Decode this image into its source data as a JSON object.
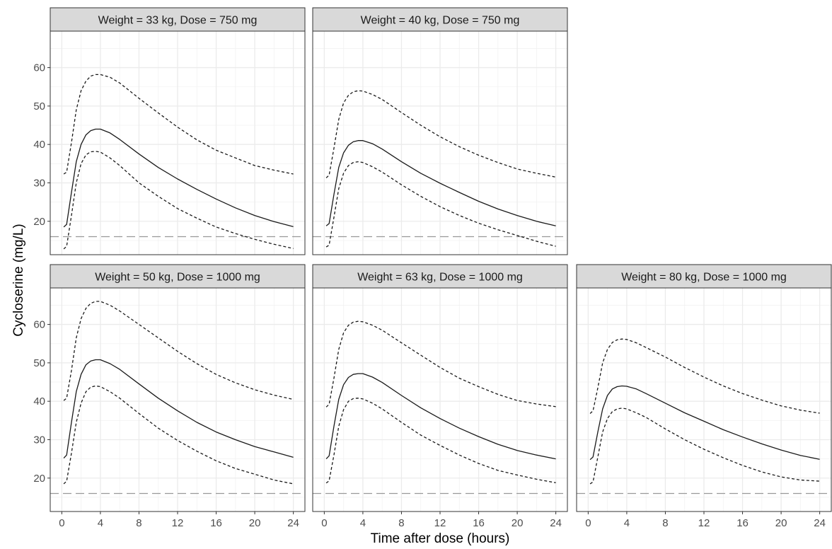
{
  "chart_data": {
    "type": "line",
    "xlabel": "Time after dose (hours)",
    "ylabel": "Cycloserine (mg/L)",
    "xlim": [
      -1.2,
      25.2
    ],
    "ylim": [
      11.3,
      69.5
    ],
    "xticks": [
      0,
      4,
      8,
      12,
      16,
      20,
      24
    ],
    "yticks": [
      20,
      30,
      40,
      50,
      60
    ],
    "grid": true,
    "reference_line": {
      "y": 16,
      "style": "dashed"
    },
    "panels": [
      {
        "title": "Weight = 33 kg, Dose = 750 mg",
        "x": [
          0.2,
          0.5,
          1,
          1.5,
          2,
          2.5,
          3,
          3.5,
          4,
          5,
          6,
          8,
          10,
          12,
          14,
          16,
          18,
          20,
          22,
          24
        ],
        "series": [
          {
            "name": "median",
            "style": "solid",
            "values": [
              18.5,
              19.2,
              27.5,
              35.5,
              40.0,
              42.5,
              43.6,
              44.0,
              44.0,
              43.0,
              41.3,
              37.5,
              34.0,
              31.0,
              28.3,
              25.8,
              23.5,
              21.5,
              19.9,
              18.6
            ]
          },
          {
            "name": "upper",
            "style": "dotted",
            "values": [
              32.3,
              32.8,
              40.5,
              49.0,
              54.0,
              56.5,
              57.8,
              58.2,
              58.2,
              57.5,
              56.0,
              52.0,
              48.2,
              44.5,
              41.2,
              38.5,
              36.5,
              34.5,
              33.3,
              32.3
            ]
          },
          {
            "name": "lower",
            "style": "dotted",
            "values": [
              12.8,
              13.5,
              21.5,
              30.0,
              35.0,
              37.3,
              38.1,
              38.2,
              38.0,
              36.5,
              34.5,
              30.0,
              26.5,
              23.3,
              20.8,
              18.5,
              16.8,
              15.3,
              14.0,
              12.9
            ]
          }
        ]
      },
      {
        "title": "Weight = 40 kg, Dose = 750 mg",
        "x": [
          0.2,
          0.5,
          1,
          1.5,
          2,
          2.5,
          3,
          3.5,
          4,
          5,
          6,
          8,
          10,
          12,
          14,
          16,
          18,
          20,
          22,
          24
        ],
        "series": [
          {
            "name": "median",
            "style": "solid",
            "values": [
              18.8,
              19.4,
              27.0,
              34.0,
              37.8,
              39.8,
              40.7,
              41.0,
              41.0,
              40.2,
              38.8,
              35.5,
              32.5,
              29.9,
              27.5,
              25.2,
              23.2,
              21.5,
              20.0,
              18.8
            ]
          },
          {
            "name": "upper",
            "style": "dotted",
            "values": [
              31.3,
              32.0,
              39.0,
              46.5,
              50.8,
              52.8,
              53.7,
              54.0,
              53.9,
              53.0,
              51.7,
              48.3,
              45.0,
              42.0,
              39.4,
              37.2,
              35.3,
              33.6,
              32.5,
              31.5
            ]
          },
          {
            "name": "lower",
            "style": "dotted",
            "values": [
              13.3,
              13.8,
              21.0,
              28.5,
              32.5,
              34.5,
              35.3,
              35.5,
              35.3,
              34.2,
              32.8,
              29.5,
              26.5,
              23.8,
              21.5,
              19.5,
              17.8,
              16.3,
              14.8,
              13.5
            ]
          }
        ]
      },
      {
        "title": "Weight = 50 kg, Dose = 1000 mg",
        "x": [
          0.2,
          0.5,
          1,
          1.5,
          2,
          2.5,
          3,
          3.5,
          4,
          5,
          6,
          8,
          10,
          12,
          14,
          16,
          18,
          20,
          22,
          24
        ],
        "series": [
          {
            "name": "median",
            "style": "solid",
            "values": [
              25.2,
              26.0,
              34.5,
              42.5,
              47.0,
              49.5,
              50.5,
              50.8,
              50.8,
              49.8,
              48.3,
              44.5,
              40.8,
              37.5,
              34.5,
              32.0,
              30.0,
              28.2,
              26.8,
              25.4
            ]
          },
          {
            "name": "upper",
            "style": "dotted",
            "values": [
              40.2,
              40.8,
              48.0,
              56.5,
              61.5,
              64.2,
              65.5,
              66.0,
              66.0,
              65.0,
              63.5,
              60.0,
              56.5,
              53.0,
              49.8,
              47.0,
              44.8,
              43.0,
              41.6,
              40.5
            ]
          },
          {
            "name": "lower",
            "style": "dotted",
            "values": [
              18.5,
              19.2,
              26.5,
              34.5,
              39.5,
              42.5,
              43.7,
              44.0,
              43.8,
              42.5,
              40.8,
              36.8,
              33.0,
              29.8,
              27.0,
              24.5,
              22.5,
              21.0,
              19.5,
              18.5
            ]
          }
        ]
      },
      {
        "title": "Weight = 63 kg, Dose = 1000 mg",
        "x": [
          0.2,
          0.5,
          1,
          1.5,
          2,
          2.5,
          3,
          3.5,
          4,
          5,
          6,
          8,
          10,
          12,
          14,
          16,
          18,
          20,
          22,
          24
        ],
        "series": [
          {
            "name": "median",
            "style": "solid",
            "values": [
              25.0,
              25.8,
              33.5,
              40.5,
              44.3,
              46.2,
              47.0,
              47.2,
              47.2,
              46.3,
              44.9,
              41.5,
              38.3,
              35.5,
              33.0,
              30.8,
              28.8,
              27.2,
              26.0,
              25.0
            ]
          },
          {
            "name": "upper",
            "style": "dotted",
            "values": [
              38.5,
              39.2,
              46.0,
              53.5,
              57.8,
              59.8,
              60.6,
              60.8,
              60.7,
              59.8,
              58.5,
              55.2,
              52.0,
              48.8,
              46.0,
              43.8,
              41.8,
              40.2,
              39.3,
              38.6
            ]
          },
          {
            "name": "lower",
            "style": "dotted",
            "values": [
              18.7,
              19.3,
              26.0,
              33.5,
              37.8,
              40.0,
              40.7,
              40.8,
              40.6,
              39.5,
              38.0,
              34.5,
              31.2,
              28.5,
              26.0,
              23.8,
              22.0,
              20.8,
              19.7,
              18.8
            ]
          }
        ]
      },
      {
        "title": "Weight = 80 kg, Dose = 1000 mg",
        "x": [
          0.2,
          0.5,
          1,
          1.5,
          2,
          2.5,
          3,
          3.5,
          4,
          5,
          6,
          8,
          10,
          12,
          14,
          16,
          18,
          20,
          22,
          24
        ],
        "series": [
          {
            "name": "median",
            "style": "solid",
            "values": [
              24.8,
              25.5,
              32.0,
              38.0,
              41.5,
              43.2,
              43.8,
              44.0,
              43.9,
              43.2,
              42.0,
              39.5,
              37.0,
              34.8,
              32.6,
              30.7,
              28.9,
              27.3,
              25.9,
              24.9
            ]
          },
          {
            "name": "upper",
            "style": "dotted",
            "values": [
              36.8,
              37.5,
              43.5,
              50.0,
              53.5,
              55.3,
              56.0,
              56.2,
              56.1,
              55.2,
              54.0,
              51.5,
              48.8,
              46.3,
              44.0,
              42.0,
              40.3,
              38.8,
              37.7,
              36.9
            ]
          },
          {
            "name": "lower",
            "style": "dotted",
            "values": [
              18.5,
              19.0,
              25.5,
              32.0,
              35.5,
              37.3,
              38.0,
              38.2,
              38.0,
              37.0,
              35.8,
              32.8,
              30.0,
              27.5,
              25.3,
              23.3,
              21.6,
              20.3,
              19.5,
              19.2
            ]
          }
        ]
      }
    ]
  }
}
